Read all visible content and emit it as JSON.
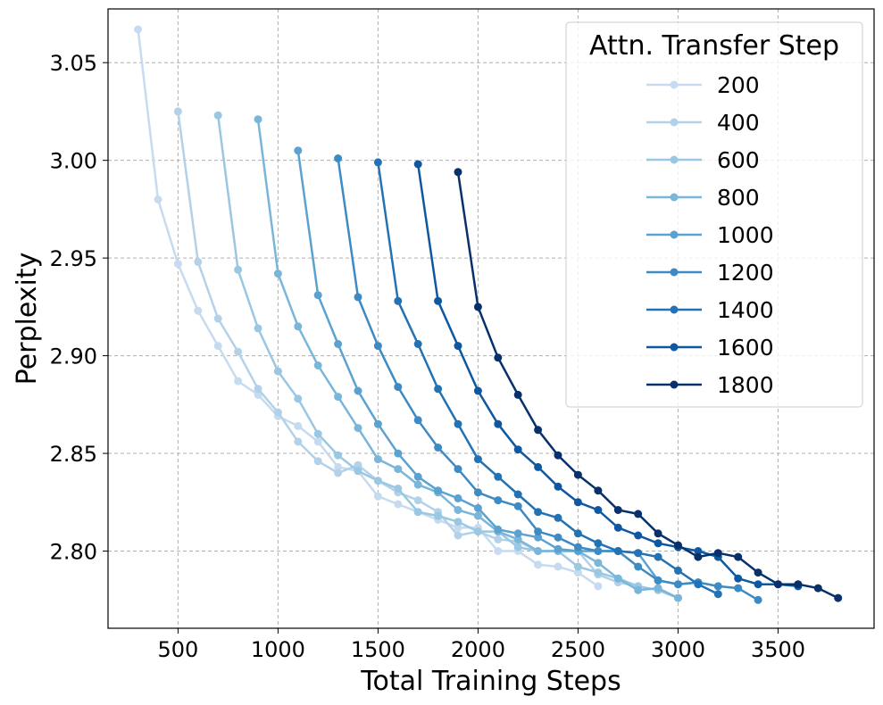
{
  "chart_data": {
    "type": "line",
    "xlabel": "Total Training Steps",
    "ylabel": "Perplexity",
    "xlim": [
      150,
      3980
    ],
    "ylim": [
      2.7605,
      3.0775
    ],
    "xticks": [
      500,
      1000,
      1500,
      2000,
      2500,
      3000,
      3500
    ],
    "yticks": [
      2.8,
      2.85,
      2.9,
      2.95,
      3.0,
      3.05
    ],
    "ytick_labels": [
      "2.80",
      "2.85",
      "2.90",
      "2.95",
      "3.00",
      "3.05"
    ],
    "grid": true,
    "legend": {
      "title": "Attn. Transfer Step",
      "location": "top-right"
    },
    "colors": [
      "#c6dbef",
      "#b3d1e8",
      "#9ac7e1",
      "#7ab5da",
      "#5ba2d0",
      "#3d8bc2",
      "#2272b4",
      "#0f58a1",
      "#08306b"
    ],
    "series": [
      {
        "name": "200",
        "x": [
          300,
          400,
          500,
          600,
          700,
          800,
          900,
          1000,
          1100,
          1200,
          1300,
          1400,
          1500,
          1600,
          1700,
          1800,
          1900,
          2000,
          2100,
          2200,
          2300,
          2400,
          2500,
          2600
        ],
        "y": [
          3.067,
          2.98,
          2.947,
          2.923,
          2.905,
          2.887,
          2.88,
          2.869,
          2.864,
          2.856,
          2.843,
          2.841,
          2.828,
          2.824,
          2.82,
          2.816,
          2.812,
          2.812,
          2.8,
          2.8,
          2.793,
          2.792,
          2.789,
          2.782
        ]
      },
      {
        "name": "400",
        "x": [
          500,
          600,
          700,
          800,
          900,
          1000,
          1100,
          1200,
          1300,
          1400,
          1500,
          1600,
          1700,
          1800,
          1900,
          2000,
          2100,
          2200,
          2300,
          2400,
          2500,
          2600,
          2700,
          2800
        ],
        "y": [
          3.025,
          2.948,
          2.919,
          2.902,
          2.883,
          2.871,
          2.856,
          2.846,
          2.84,
          2.844,
          2.836,
          2.83,
          2.826,
          2.82,
          2.808,
          2.81,
          2.806,
          2.805,
          2.8,
          2.8,
          2.8,
          2.788,
          2.784,
          2.782
        ]
      },
      {
        "name": "600",
        "x": [
          700,
          800,
          900,
          1000,
          1100,
          1200,
          1300,
          1400,
          1500,
          1600,
          1700,
          1800,
          1900,
          2000,
          2100,
          2200,
          2300,
          2400,
          2500,
          2600,
          2700,
          2800,
          2900,
          3000
        ],
        "y": [
          3.023,
          2.944,
          2.914,
          2.892,
          2.878,
          2.86,
          2.849,
          2.841,
          2.836,
          2.832,
          2.82,
          2.818,
          2.815,
          2.81,
          2.81,
          2.802,
          2.8,
          2.8,
          2.792,
          2.789,
          2.786,
          2.782,
          2.78,
          2.776
        ]
      },
      {
        "name": "800",
        "x": [
          900,
          1000,
          1100,
          1200,
          1300,
          1400,
          1500,
          1600,
          1700,
          1800,
          1900,
          2000,
          2100,
          2200,
          2300,
          2400,
          2500,
          2600,
          2700,
          2800,
          2900,
          3000
        ],
        "y": [
          3.021,
          2.942,
          2.915,
          2.895,
          2.879,
          2.863,
          2.847,
          2.842,
          2.834,
          2.83,
          2.821,
          2.818,
          2.81,
          2.806,
          2.8,
          2.8,
          2.8,
          2.794,
          2.786,
          2.78,
          2.781,
          2.776
        ]
      },
      {
        "name": "1000",
        "x": [
          1100,
          1200,
          1300,
          1400,
          1500,
          1600,
          1700,
          1800,
          1900,
          2000,
          2100,
          2200,
          2300,
          2400,
          2500,
          2600,
          2700,
          2800,
          2900,
          3000,
          3100
        ],
        "y": [
          3.005,
          2.931,
          2.906,
          2.882,
          2.865,
          2.85,
          2.838,
          2.831,
          2.827,
          2.822,
          2.811,
          2.809,
          2.807,
          2.801,
          2.8,
          2.8,
          2.8,
          2.799,
          2.785,
          2.783,
          2.784
        ]
      },
      {
        "name": "1200",
        "x": [
          1300,
          1400,
          1500,
          1600,
          1700,
          1800,
          1900,
          2000,
          2100,
          2200,
          2300,
          2400,
          2500,
          2600,
          2700,
          2800,
          2900,
          3000,
          3100,
          3200,
          3300,
          3400
        ],
        "y": [
          3.001,
          2.93,
          2.905,
          2.884,
          2.867,
          2.853,
          2.842,
          2.83,
          2.826,
          2.823,
          2.81,
          2.807,
          2.802,
          2.8,
          2.8,
          2.792,
          2.785,
          2.783,
          2.784,
          2.782,
          2.781,
          2.775
        ]
      },
      {
        "name": "1400",
        "x": [
          1500,
          1600,
          1700,
          1800,
          1900,
          2000,
          2100,
          2200,
          2300,
          2400,
          2500,
          2600,
          2700,
          2800,
          2900,
          3000,
          3100,
          3200
        ],
        "y": [
          2.999,
          2.928,
          2.906,
          2.883,
          2.865,
          2.847,
          2.838,
          2.829,
          2.82,
          2.817,
          2.809,
          2.804,
          2.8,
          2.799,
          2.797,
          2.79,
          2.783,
          2.778
        ]
      },
      {
        "name": "1600",
        "x": [
          1700,
          1800,
          1900,
          2000,
          2100,
          2200,
          2300,
          2400,
          2500,
          2600,
          2700,
          2800,
          2900,
          3000,
          3100,
          3200,
          3300,
          3400,
          3500,
          3600
        ],
        "y": [
          2.998,
          2.928,
          2.905,
          2.882,
          2.865,
          2.852,
          2.843,
          2.833,
          2.825,
          2.821,
          2.812,
          2.808,
          2.804,
          2.802,
          2.8,
          2.797,
          2.786,
          2.783,
          2.783,
          2.782
        ]
      },
      {
        "name": "1800",
        "x": [
          1900,
          2000,
          2100,
          2200,
          2300,
          2400,
          2500,
          2600,
          2700,
          2800,
          2900,
          3000,
          3100,
          3200,
          3300,
          3400,
          3500,
          3600,
          3700,
          3800
        ],
        "y": [
          2.994,
          2.925,
          2.899,
          2.88,
          2.862,
          2.849,
          2.839,
          2.831,
          2.821,
          2.819,
          2.809,
          2.803,
          2.797,
          2.799,
          2.797,
          2.789,
          2.783,
          2.783,
          2.781,
          2.776
        ]
      }
    ]
  }
}
